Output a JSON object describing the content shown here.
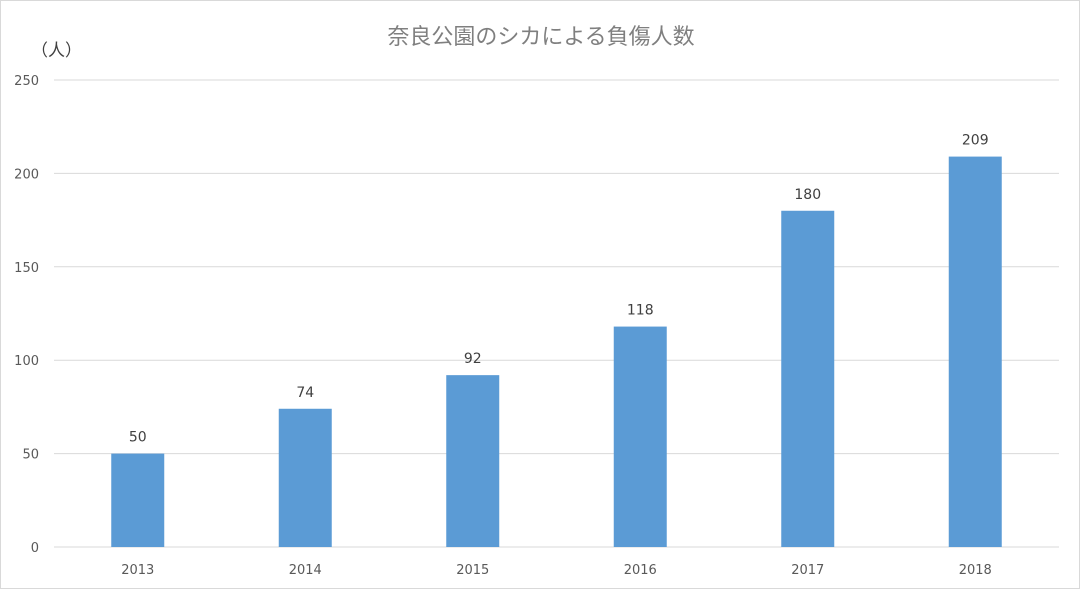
{
  "chart_data": {
    "type": "bar",
    "title": "奈良公園のシカによる負傷人数",
    "ylabel": "（人）",
    "xlabel": "",
    "categories": [
      "2013",
      "2014",
      "2015",
      "2016",
      "2017",
      "2018"
    ],
    "values": [
      50,
      74,
      92,
      118,
      180,
      209
    ],
    "ylim": [
      0,
      250
    ],
    "yticks": [
      0,
      50,
      100,
      150,
      200,
      250
    ],
    "grid": true,
    "data_labels": true,
    "colors": {
      "bar": "#5b9bd5",
      "grid": "#d9d9d9"
    }
  }
}
